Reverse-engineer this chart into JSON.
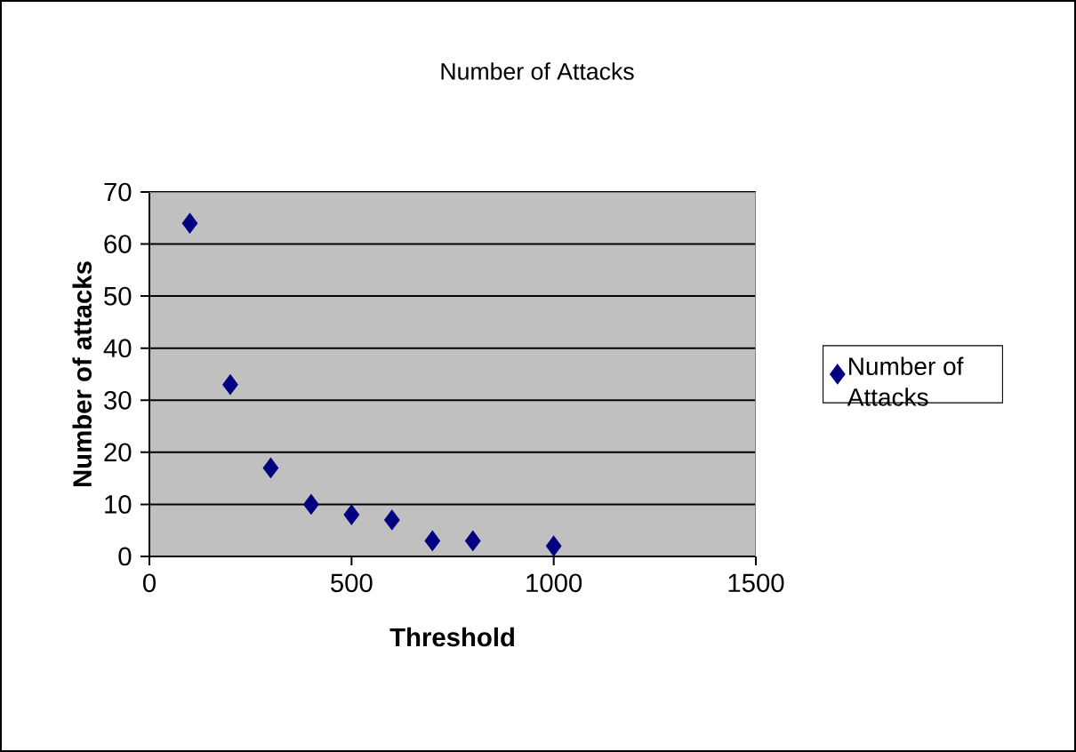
{
  "chart_data": {
    "type": "scatter",
    "title": "Number of Attacks",
    "xlabel": "Threshold",
    "ylabel": "Number of attacks",
    "x": [
      100,
      200,
      300,
      400,
      500,
      600,
      700,
      800,
      1000
    ],
    "series": [
      {
        "name": "Number of Attacks",
        "color": "#000080",
        "values": [
          64,
          33,
          17,
          10,
          8,
          7,
          3,
          3,
          2
        ]
      }
    ],
    "xlim": [
      0,
      1500
    ],
    "xticks": [
      0,
      500,
      1000,
      1500
    ],
    "ylim": [
      0,
      70
    ],
    "yticks": [
      0,
      10,
      20,
      30,
      40,
      50,
      60,
      70
    ],
    "grid": "y",
    "legend": "right",
    "marker": "diamond"
  }
}
